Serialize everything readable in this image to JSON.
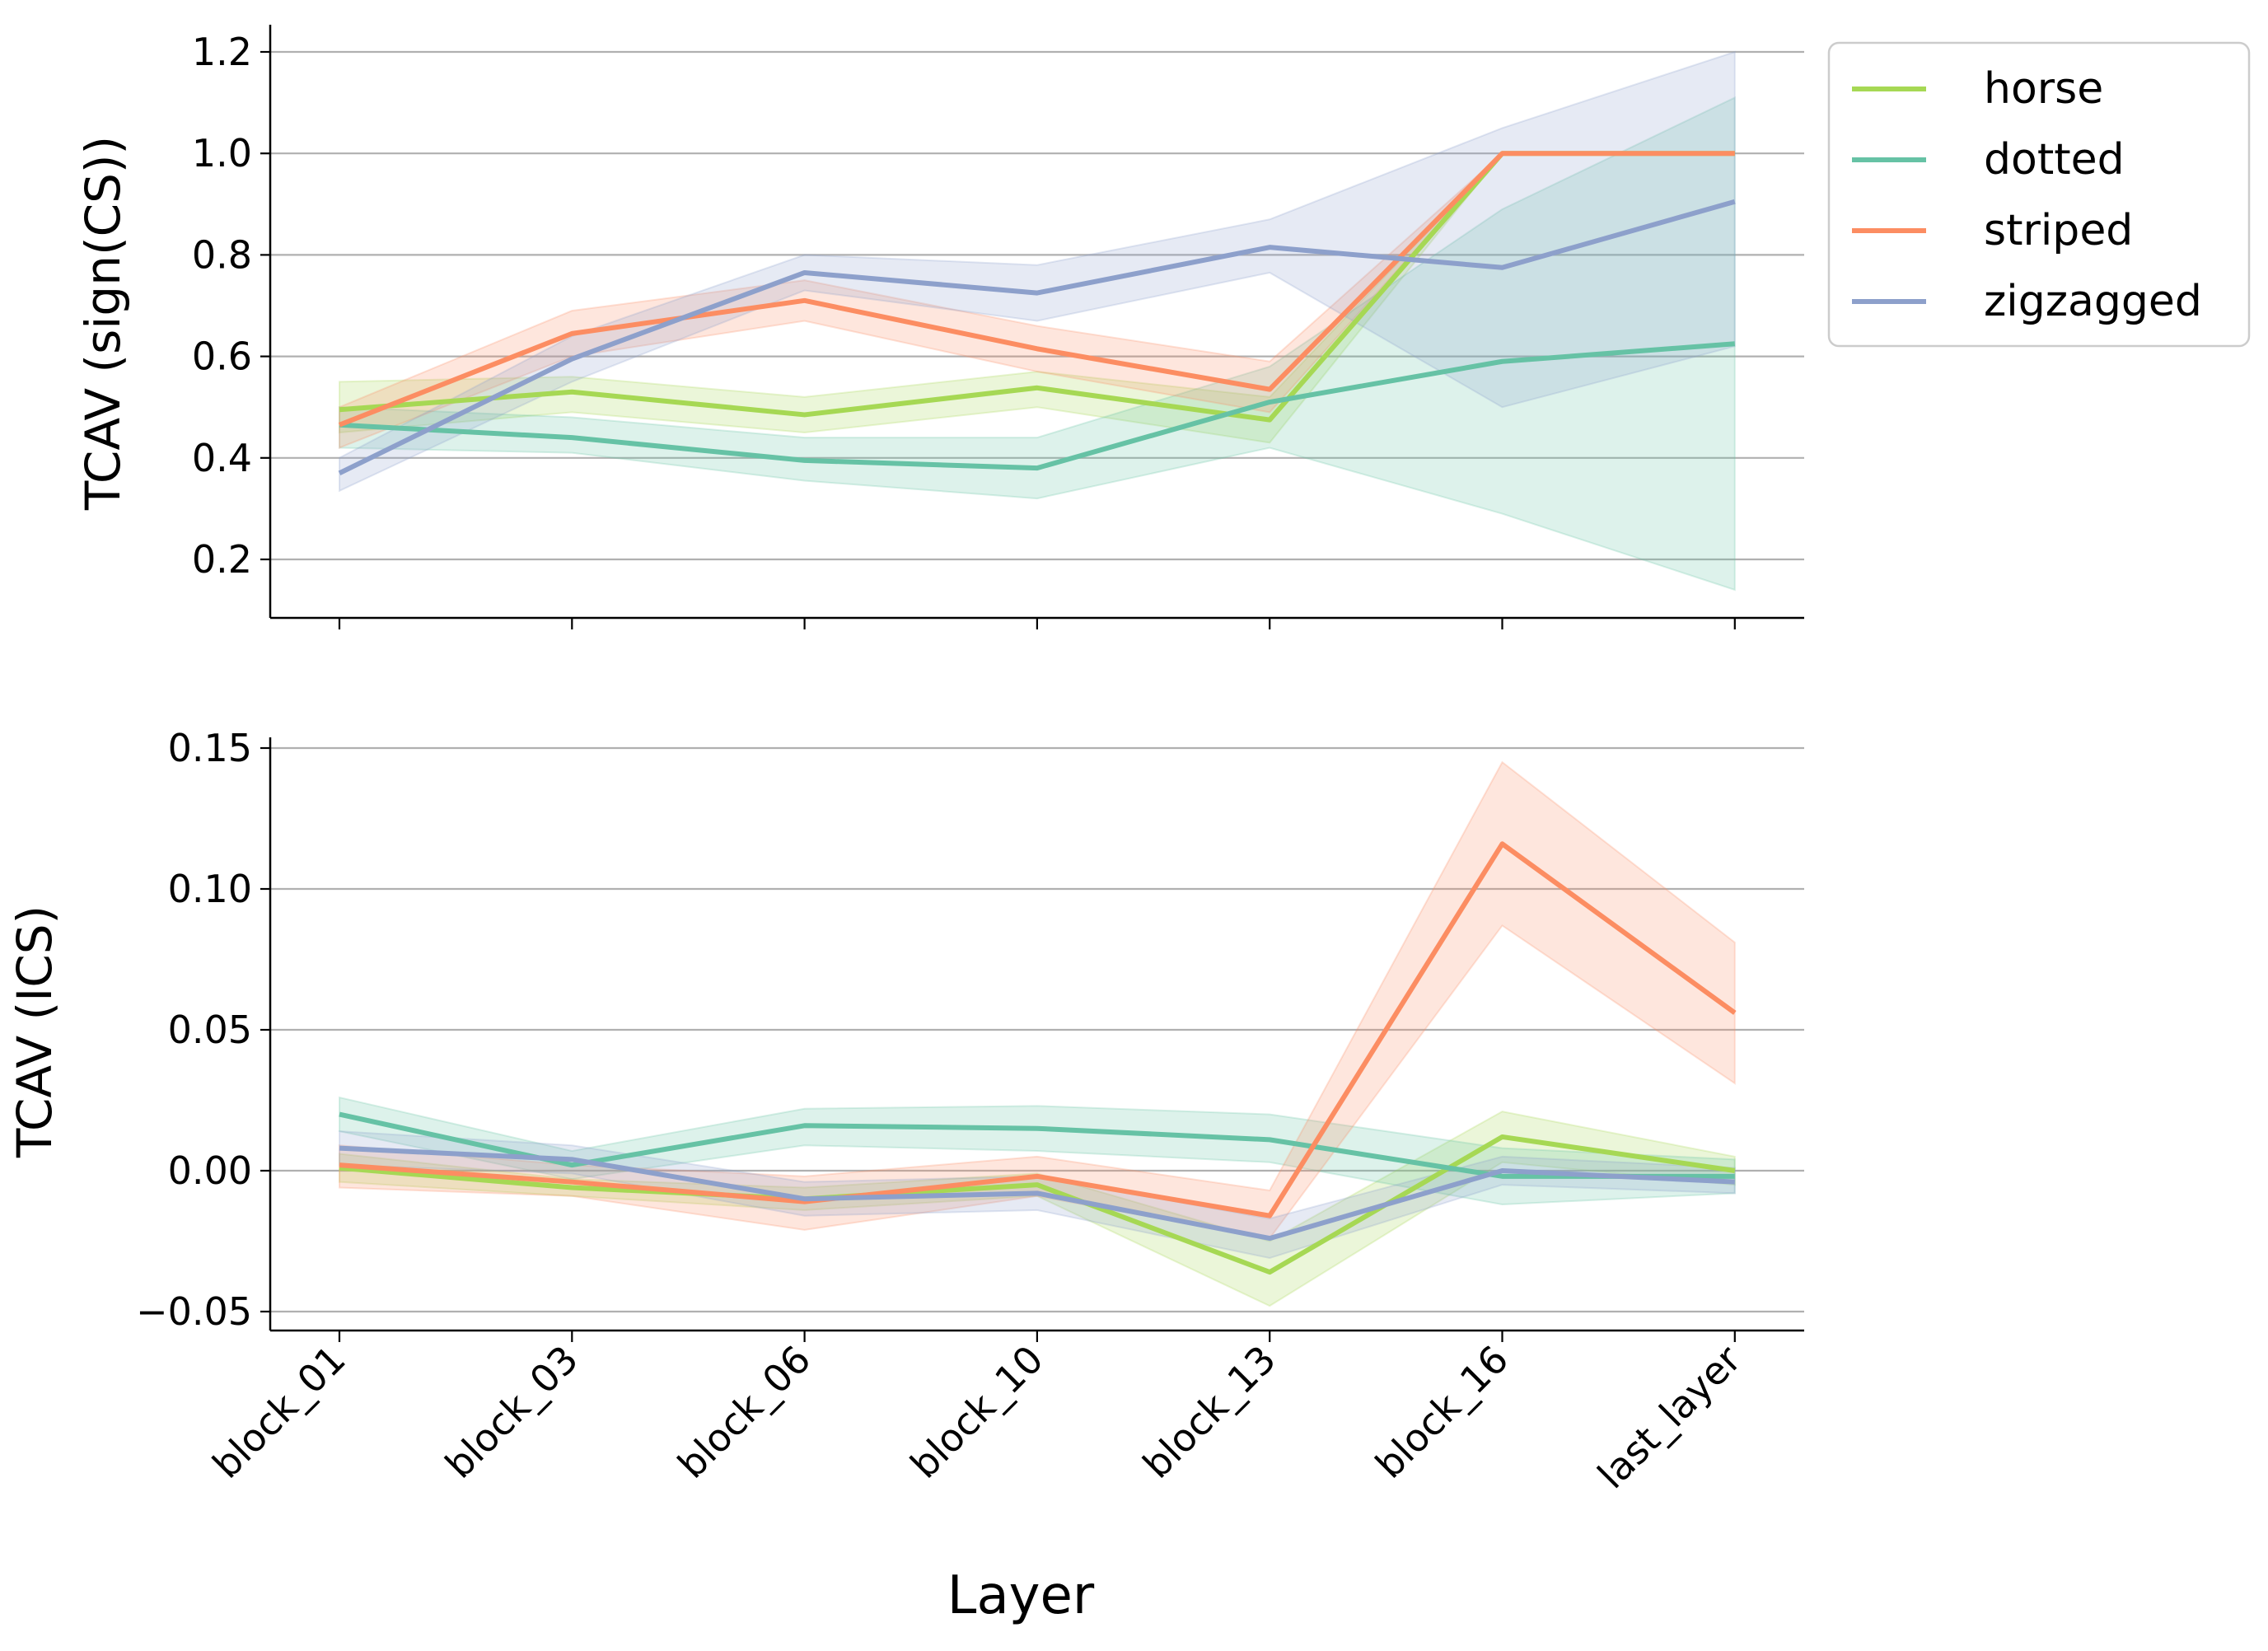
{
  "chart_data": [
    {
      "type": "line",
      "ylabel": "TCAV (sign(CS))",
      "xlabel": "",
      "categories": [
        "block_01",
        "block_03",
        "block_06",
        "block_10",
        "block_13",
        "block_16",
        "last_layer"
      ],
      "yticks": [
        "0.2",
        "0.4",
        "0.6",
        "0.8",
        "1.0",
        "1.2"
      ],
      "ylim": [
        0.09,
        1.25
      ],
      "grid": "horizontal",
      "legend": "outside-top-right",
      "series": [
        {
          "name": "horse",
          "color": "#a6d854",
          "values": [
            0.495,
            0.53,
            0.485,
            0.538,
            0.475,
            1.0,
            1.0
          ],
          "lower": [
            0.45,
            0.49,
            0.45,
            0.5,
            0.43,
            1.0,
            1.0
          ],
          "upper": [
            0.55,
            0.56,
            0.52,
            0.57,
            0.52,
            1.0,
            1.0
          ]
        },
        {
          "name": "dotted",
          "color": "#66c2a5",
          "values": [
            0.465,
            0.44,
            0.395,
            0.38,
            0.51,
            0.59,
            0.625
          ],
          "lower": [
            0.42,
            0.41,
            0.355,
            0.32,
            0.42,
            0.29,
            0.14
          ],
          "upper": [
            0.5,
            0.48,
            0.44,
            0.44,
            0.58,
            0.89,
            1.11
          ]
        },
        {
          "name": "striped",
          "color": "#fc8d62",
          "values": [
            0.465,
            0.645,
            0.71,
            0.615,
            0.535,
            1.0,
            1.0
          ],
          "lower": [
            0.42,
            0.6,
            0.67,
            0.57,
            0.49,
            1.0,
            1.0
          ],
          "upper": [
            0.5,
            0.69,
            0.75,
            0.66,
            0.59,
            1.0,
            1.0
          ]
        },
        {
          "name": "zigzagged",
          "color": "#8da0cb",
          "values": [
            0.37,
            0.595,
            0.765,
            0.725,
            0.815,
            0.775,
            0.905
          ],
          "lower": [
            0.335,
            0.55,
            0.73,
            0.67,
            0.765,
            0.5,
            0.62
          ],
          "upper": [
            0.4,
            0.64,
            0.8,
            0.78,
            0.87,
            1.05,
            1.2
          ]
        }
      ]
    },
    {
      "type": "line",
      "ylabel": "TCAV (ICS)",
      "xlabel": "Layer",
      "categories": [
        "block_01",
        "block_03",
        "block_06",
        "block_10",
        "block_13",
        "block_16",
        "last_layer"
      ],
      "yticks": [
        "−0.05",
        "0.00",
        "0.05",
        "0.10",
        "0.15"
      ],
      "ylim": [
        -0.058,
        0.155
      ],
      "grid": "horizontal",
      "series": [
        {
          "name": "horse",
          "color": "#a6d854",
          "values": [
            0.001,
            -0.006,
            -0.01,
            -0.005,
            -0.036,
            0.012,
            0.0
          ],
          "lower": [
            -0.004,
            -0.009,
            -0.014,
            -0.009,
            -0.048,
            0.003,
            -0.005
          ],
          "upper": [
            0.006,
            -0.003,
            -0.006,
            -0.001,
            -0.025,
            0.021,
            0.005
          ]
        },
        {
          "name": "dotted",
          "color": "#66c2a5",
          "values": [
            0.02,
            0.002,
            0.016,
            0.015,
            0.011,
            -0.002,
            -0.002
          ],
          "lower": [
            0.014,
            -0.003,
            0.009,
            0.007,
            0.003,
            -0.012,
            -0.008
          ],
          "upper": [
            0.026,
            0.007,
            0.022,
            0.023,
            0.02,
            0.008,
            0.004
          ]
        },
        {
          "name": "striped",
          "color": "#fc8d62",
          "values": [
            0.002,
            -0.004,
            -0.011,
            -0.002,
            -0.016,
            0.116,
            0.056
          ],
          "lower": [
            -0.006,
            -0.009,
            -0.021,
            -0.009,
            -0.024,
            0.087,
            0.031
          ],
          "upper": [
            0.009,
            0.002,
            -0.002,
            0.005,
            -0.007,
            0.145,
            0.081
          ]
        },
        {
          "name": "zigzagged",
          "color": "#8da0cb",
          "values": [
            0.008,
            0.004,
            -0.01,
            -0.008,
            -0.024,
            0.0,
            -0.004
          ],
          "lower": [
            0.002,
            -0.001,
            -0.016,
            -0.014,
            -0.031,
            -0.005,
            -0.008
          ],
          "upper": [
            0.014,
            0.009,
            -0.004,
            -0.002,
            -0.017,
            0.005,
            0.001
          ]
        }
      ]
    }
  ]
}
